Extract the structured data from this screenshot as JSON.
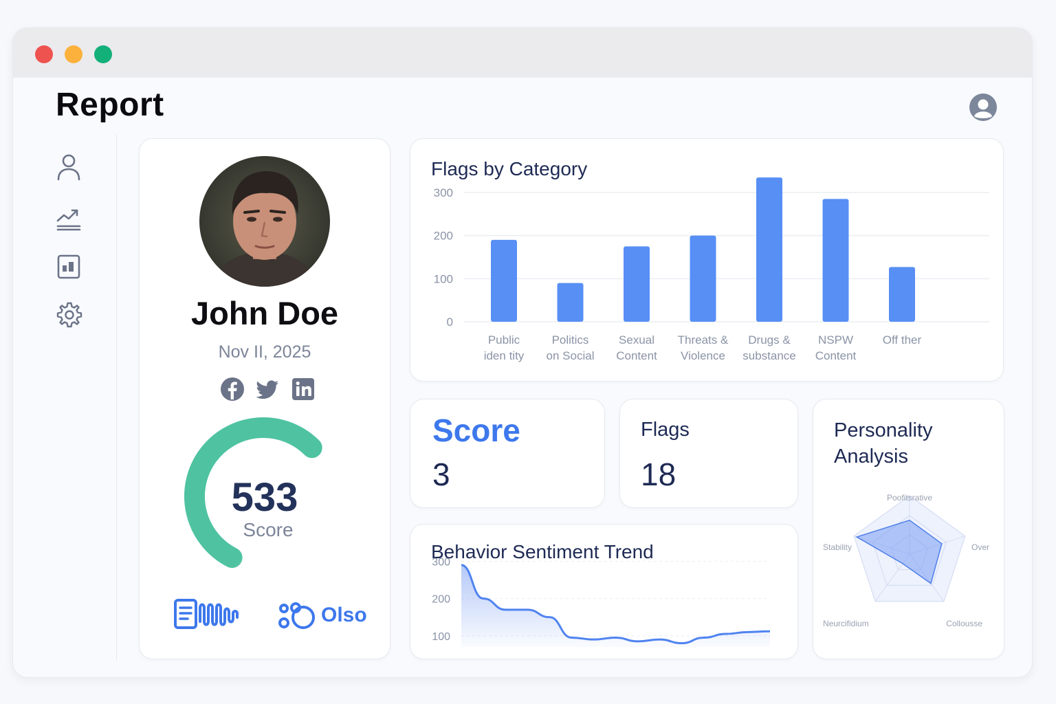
{
  "window": {
    "controls": [
      "close",
      "minimize",
      "maximize"
    ]
  },
  "header": {
    "title": "Report",
    "user_icon": "user-circle-icon"
  },
  "sidebar": {
    "items": [
      {
        "name": "profile",
        "icon": "user-icon"
      },
      {
        "name": "analytics",
        "icon": "trend-chart-icon"
      },
      {
        "name": "dashboard",
        "icon": "dashboard-icon"
      },
      {
        "name": "settings",
        "icon": "gear-icon"
      }
    ]
  },
  "profile": {
    "name": "John Doe",
    "date": "Nov II, 2025",
    "social": [
      "facebook-icon",
      "twitter-icon",
      "linkedin-icon"
    ],
    "gauge": {
      "value": "533",
      "label": "Score",
      "fraction": 0.55
    },
    "logos": {
      "second_text": "Olso"
    }
  },
  "flags_by_category": {
    "title": "Flags by Category",
    "chart_data": {
      "type": "bar",
      "title": "Flags by Category",
      "categories": [
        [
          "Public",
          "iden tity"
        ],
        [
          "Politics",
          "on Social"
        ],
        [
          "Sexual",
          "Content"
        ],
        [
          "Threats &",
          "Violence"
        ],
        [
          "Drugs &",
          "substance"
        ],
        [
          "NSPW",
          "Content"
        ],
        [
          "Off ther"
        ]
      ],
      "values": [
        190,
        90,
        175,
        200,
        335,
        285,
        127
      ],
      "y_ticks": [
        "300",
        "200",
        "100",
        "0"
      ],
      "ylim": [
        0,
        300
      ],
      "grid": true,
      "color": "#578ff5"
    }
  },
  "score_card": {
    "title": "Score",
    "value": "3"
  },
  "flags_card": {
    "title": "Flags",
    "value": "18"
  },
  "sentiment": {
    "title": "Behavior Sentiment Trend",
    "chart_data": {
      "type": "area",
      "title": "Behavior Sentiment Trend",
      "y_ticks": [
        "300",
        "200",
        "100"
      ],
      "ylim": [
        70,
        310
      ],
      "values": [
        290,
        200,
        170,
        170,
        150,
        95,
        90,
        95,
        85,
        90,
        80,
        95,
        105,
        110,
        112
      ],
      "color": "#4f83f0"
    }
  },
  "personality": {
    "title_line1": "Personality",
    "title_line2": "Analysis",
    "chart_data": {
      "type": "radar",
      "axes": [
        "Poofitsrative",
        "Over",
        "Collousse",
        "Neurcifidium",
        "Stability"
      ],
      "values": [
        0.58,
        0.58,
        0.62,
        0.2,
        0.95
      ]
    }
  }
}
